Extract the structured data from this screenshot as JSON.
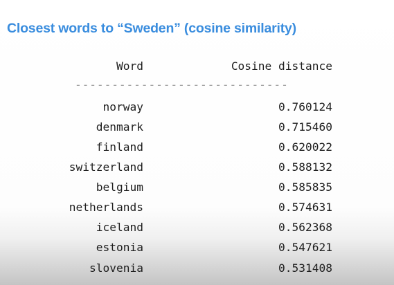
{
  "slide": {
    "title": "Closest words to “Sweden” (cosine similarity)"
  },
  "table": {
    "headers": {
      "word": "Word",
      "distance": "Cosine distance"
    },
    "divider": "-----------------------------",
    "rows": [
      {
        "word": "norway",
        "distance": "0.760124"
      },
      {
        "word": "denmark",
        "distance": "0.715460"
      },
      {
        "word": "finland",
        "distance": "0.620022"
      },
      {
        "word": "switzerland",
        "distance": "0.588132"
      },
      {
        "word": "belgium",
        "distance": "0.585835"
      },
      {
        "word": "netherlands",
        "distance": "0.574631"
      },
      {
        "word": "iceland",
        "distance": "0.562368"
      },
      {
        "word": "estonia",
        "distance": "0.547621"
      },
      {
        "word": "slovenia",
        "distance": "0.531408"
      }
    ]
  }
}
